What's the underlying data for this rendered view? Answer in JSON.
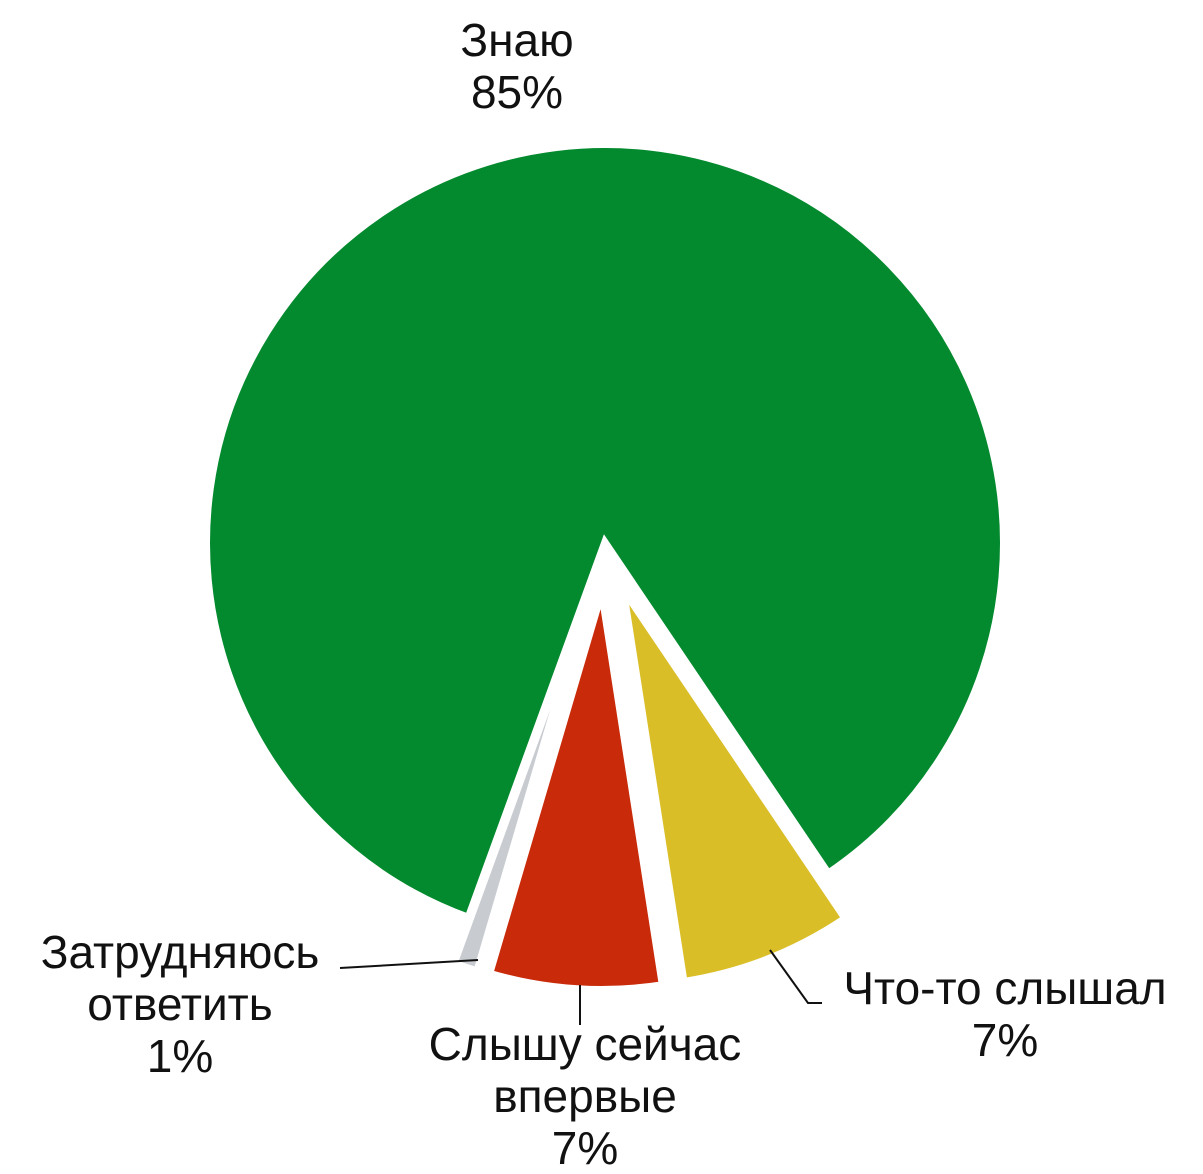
{
  "chart_data": {
    "type": "pie",
    "categories": [
      "Знаю",
      "Что-то слышал",
      "Слышу сейчас впервые",
      "Затрудняюсь ответить"
    ],
    "values": [
      85,
      7,
      7,
      1
    ],
    "value_labels": [
      "85%",
      "7%",
      "7%",
      "1%"
    ],
    "colors": [
      "#038a2e",
      "#d9be28",
      "#c82a0a",
      "#c8ccd0"
    ]
  }
}
